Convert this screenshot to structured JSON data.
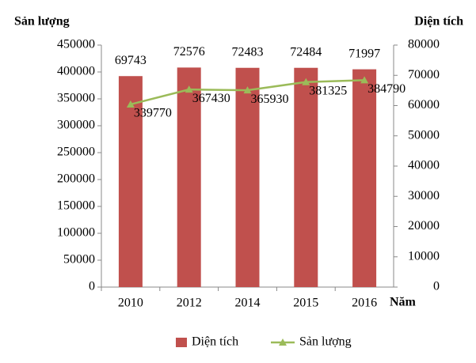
{
  "chart_data": {
    "type": "combo",
    "y_title": "Sản lượng",
    "y2_title": "Diện tích",
    "x_title": "Năm",
    "categories": [
      "2010",
      "2012",
      "2014",
      "2015",
      "2016"
    ],
    "series": [
      {
        "name": "Diện tích",
        "type": "bar",
        "axis": "y2",
        "color": "#c0504d",
        "values": [
          69743,
          72576,
          72483,
          72484,
          71997
        ]
      },
      {
        "name": "Sản lượng",
        "type": "line",
        "axis": "y",
        "color": "#9bbb59",
        "values": [
          339770,
          367430,
          365930,
          381325,
          384790
        ]
      }
    ],
    "ylim": [
      0,
      450000
    ],
    "yticks": [
      0,
      50000,
      100000,
      150000,
      200000,
      250000,
      300000,
      350000,
      400000,
      450000
    ],
    "y2lim": [
      0,
      80000
    ],
    "y2ticks": [
      0,
      10000,
      20000,
      30000,
      40000,
      50000,
      60000,
      70000,
      80000
    ],
    "legend": "bottom"
  }
}
